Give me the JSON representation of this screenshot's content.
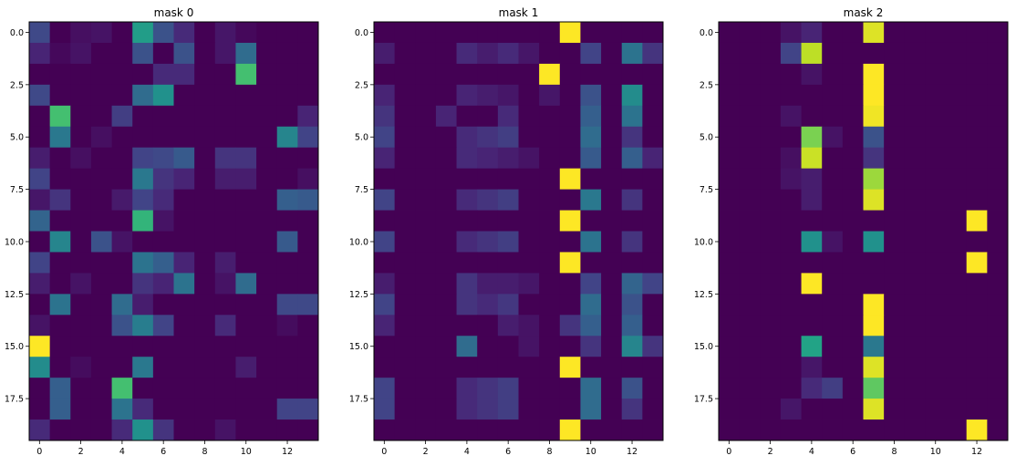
{
  "chart_data": [
    {
      "type": "heatmap",
      "title": "mask 0",
      "xlabel": "",
      "ylabel": "",
      "colormap": "viridis",
      "value_range": [
        0,
        1
      ],
      "xlim": [
        -0.5,
        13.5
      ],
      "ylim": [
        19.5,
        -0.5
      ],
      "x_ticks": [
        "0",
        "2",
        "4",
        "6",
        "8",
        "10",
        "12"
      ],
      "y_ticks": [
        "0.0",
        "2.5",
        "5.0",
        "7.5",
        "10.0",
        "12.5",
        "15.0",
        "17.5"
      ],
      "values": [
        [
          0.22,
          0,
          0.04,
          0.05,
          0,
          0.55,
          0.25,
          0.12,
          0,
          0.06,
          0.02,
          0,
          0,
          0
        ],
        [
          0.1,
          0.02,
          0.05,
          0,
          0,
          0.25,
          0,
          0.25,
          0,
          0.06,
          0.35,
          0,
          0,
          0
        ],
        [
          0,
          0,
          0,
          0,
          0,
          0,
          0.12,
          0.12,
          0,
          0,
          0.7,
          0,
          0,
          0
        ],
        [
          0.22,
          0,
          0,
          0,
          0,
          0.35,
          0.5,
          0,
          0,
          0,
          0,
          0,
          0,
          0
        ],
        [
          0,
          0.7,
          0,
          0,
          0.18,
          0,
          0,
          0,
          0,
          0,
          0,
          0,
          0,
          0.1
        ],
        [
          0,
          0.4,
          0,
          0.04,
          0,
          0,
          0,
          0,
          0,
          0,
          0,
          0,
          0.45,
          0.2
        ],
        [
          0.08,
          0,
          0.04,
          0,
          0,
          0.2,
          0.22,
          0.28,
          0,
          0.15,
          0.15,
          0,
          0,
          0
        ],
        [
          0.2,
          0,
          0,
          0,
          0,
          0.4,
          0.15,
          0.1,
          0,
          0.08,
          0.08,
          0,
          0,
          0.04
        ],
        [
          0.06,
          0.15,
          0,
          0,
          0.07,
          0.2,
          0.12,
          0,
          0,
          0,
          0,
          0,
          0.3,
          0.28
        ],
        [
          0.32,
          0,
          0,
          0,
          0,
          0.65,
          0.05,
          0,
          0,
          0,
          0,
          0,
          0,
          0
        ],
        [
          0,
          0.45,
          0,
          0.25,
          0.05,
          0,
          0,
          0,
          0,
          0,
          0,
          0,
          0.28,
          0
        ],
        [
          0.2,
          0,
          0,
          0,
          0,
          0.38,
          0.3,
          0.1,
          0,
          0.08,
          0,
          0,
          0,
          0
        ],
        [
          0.08,
          0,
          0.05,
          0,
          0,
          0.15,
          0.1,
          0.38,
          0,
          0.05,
          0.35,
          0,
          0,
          0
        ],
        [
          0,
          0.38,
          0,
          0,
          0.35,
          0.08,
          0,
          0,
          0,
          0,
          0,
          0,
          0.22,
          0.22
        ],
        [
          0.05,
          0,
          0,
          0,
          0.25,
          0.42,
          0.2,
          0,
          0,
          0.12,
          0,
          0,
          0.03,
          0
        ],
        [
          1.0,
          0,
          0,
          0,
          0,
          0,
          0,
          0,
          0,
          0,
          0,
          0,
          0,
          0
        ],
        [
          0.48,
          0,
          0.03,
          0,
          0,
          0.4,
          0,
          0,
          0,
          0,
          0.08,
          0,
          0,
          0
        ],
        [
          0,
          0.3,
          0,
          0,
          0.7,
          0,
          0,
          0,
          0,
          0,
          0,
          0,
          0,
          0
        ],
        [
          0,
          0.3,
          0,
          0,
          0.38,
          0.12,
          0,
          0,
          0,
          0,
          0,
          0,
          0.2,
          0.2
        ],
        [
          0.12,
          0,
          0,
          0,
          0.12,
          0.5,
          0.15,
          0,
          0,
          0.05,
          0,
          0,
          0,
          0
        ]
      ]
    },
    {
      "type": "heatmap",
      "title": "mask 1",
      "xlabel": "",
      "ylabel": "",
      "colormap": "viridis",
      "value_range": [
        0,
        1
      ],
      "xlim": [
        -0.5,
        13.5
      ],
      "ylim": [
        19.5,
        -0.5
      ],
      "x_ticks": [
        "0",
        "2",
        "4",
        "6",
        "8",
        "10",
        "12"
      ],
      "y_ticks": [
        "0.0",
        "2.5",
        "5.0",
        "7.5",
        "10.0",
        "12.5",
        "15.0",
        "17.5"
      ],
      "values": [
        [
          0,
          0,
          0,
          0,
          0,
          0,
          0,
          0,
          0,
          1.0,
          0,
          0,
          0,
          0
        ],
        [
          0.08,
          0,
          0,
          0,
          0.12,
          0.08,
          0.12,
          0.06,
          0,
          0,
          0.2,
          0,
          0.38,
          0.15
        ],
        [
          0,
          0,
          0,
          0,
          0,
          0,
          0,
          0,
          1.0,
          0,
          0,
          0,
          0,
          0
        ],
        [
          0.1,
          0,
          0,
          0,
          0.1,
          0.08,
          0.06,
          0,
          0.06,
          0,
          0.25,
          0,
          0.48,
          0
        ],
        [
          0.15,
          0,
          0,
          0.1,
          0,
          0,
          0.12,
          0,
          0,
          0,
          0.3,
          0,
          0.38,
          0
        ],
        [
          0.2,
          0,
          0,
          0,
          0.12,
          0.15,
          0.18,
          0,
          0,
          0,
          0.35,
          0,
          0.15,
          0
        ],
        [
          0.1,
          0,
          0,
          0,
          0.12,
          0.1,
          0.08,
          0.05,
          0,
          0,
          0.28,
          0,
          0.3,
          0.1
        ],
        [
          0,
          0,
          0,
          0,
          0,
          0,
          0,
          0,
          0,
          1.0,
          0,
          0,
          0,
          0
        ],
        [
          0.2,
          0,
          0,
          0,
          0.12,
          0.15,
          0.18,
          0,
          0,
          0,
          0.4,
          0,
          0.15,
          0
        ],
        [
          0,
          0,
          0,
          0,
          0,
          0,
          0,
          0,
          0,
          1.0,
          0,
          0,
          0,
          0
        ],
        [
          0.2,
          0,
          0,
          0,
          0.12,
          0.15,
          0.18,
          0,
          0,
          0,
          0.38,
          0,
          0.15,
          0
        ],
        [
          0,
          0,
          0,
          0,
          0,
          0,
          0,
          0,
          0,
          1.0,
          0,
          0,
          0,
          0
        ],
        [
          0.08,
          0,
          0,
          0,
          0.15,
          0.08,
          0.08,
          0.06,
          0,
          0,
          0.2,
          0,
          0.32,
          0.2
        ],
        [
          0.2,
          0,
          0,
          0,
          0.15,
          0.12,
          0.16,
          0,
          0,
          0,
          0.35,
          0,
          0.25,
          0
        ],
        [
          0.1,
          0,
          0,
          0,
          0,
          0,
          0.08,
          0.05,
          0,
          0.15,
          0.3,
          0,
          0.3,
          0
        ],
        [
          0,
          0,
          0,
          0,
          0.35,
          0,
          0,
          0.05,
          0,
          0,
          0.15,
          0,
          0.45,
          0.15
        ],
        [
          0,
          0,
          0,
          0,
          0,
          0,
          0,
          0,
          0,
          1.0,
          0,
          0,
          0,
          0
        ],
        [
          0.2,
          0,
          0,
          0,
          0.12,
          0.15,
          0.18,
          0,
          0,
          0,
          0.35,
          0,
          0.25,
          0
        ],
        [
          0.2,
          0,
          0,
          0,
          0.12,
          0.15,
          0.18,
          0,
          0,
          0,
          0.35,
          0,
          0.15,
          0
        ],
        [
          0,
          0,
          0,
          0,
          0,
          0,
          0,
          0,
          0,
          1.0,
          0,
          0,
          0,
          0
        ]
      ]
    },
    {
      "type": "heatmap",
      "title": "mask 2",
      "xlabel": "",
      "ylabel": "",
      "colormap": "viridis",
      "value_range": [
        0,
        1
      ],
      "xlim": [
        -0.5,
        13.5
      ],
      "ylim": [
        19.5,
        -0.5
      ],
      "x_ticks": [
        "0",
        "2",
        "4",
        "6",
        "8",
        "10",
        "12"
      ],
      "y_ticks": [
        "0.0",
        "2.5",
        "5.0",
        "7.5",
        "10.0",
        "12.5",
        "15.0",
        "17.5"
      ],
      "values": [
        [
          0,
          0,
          0,
          0.05,
          0.1,
          0,
          0,
          0.95,
          0,
          0,
          0,
          0,
          0,
          0
        ],
        [
          0,
          0,
          0,
          0.2,
          0.9,
          0,
          0,
          0,
          0,
          0,
          0,
          0,
          0,
          0
        ],
        [
          0,
          0,
          0,
          0,
          0.05,
          0,
          0,
          1.0,
          0,
          0,
          0,
          0,
          0,
          0
        ],
        [
          0,
          0,
          0,
          0,
          0,
          0,
          0,
          1.0,
          0,
          0,
          0,
          0,
          0,
          0
        ],
        [
          0,
          0,
          0,
          0.05,
          0,
          0,
          0,
          0.98,
          0,
          0,
          0,
          0,
          0,
          0
        ],
        [
          0,
          0,
          0,
          0,
          0.8,
          0.05,
          0,
          0.25,
          0,
          0,
          0,
          0,
          0,
          0
        ],
        [
          0,
          0,
          0,
          0.04,
          0.92,
          0,
          0,
          0.15,
          0,
          0,
          0,
          0,
          0,
          0
        ],
        [
          0,
          0,
          0,
          0.05,
          0.08,
          0,
          0,
          0.85,
          0,
          0,
          0,
          0,
          0,
          0
        ],
        [
          0,
          0,
          0,
          0,
          0.08,
          0,
          0,
          0.95,
          0,
          0,
          0,
          0,
          0,
          0
        ],
        [
          0,
          0,
          0,
          0,
          0,
          0,
          0,
          0,
          0,
          0,
          0,
          0,
          1.0,
          0
        ],
        [
          0,
          0,
          0,
          0,
          0.5,
          0.05,
          0,
          0.5,
          0,
          0,
          0,
          0,
          0,
          0
        ],
        [
          0,
          0,
          0,
          0,
          0,
          0,
          0,
          0,
          0,
          0,
          0,
          0,
          1.0,
          0
        ],
        [
          0,
          0,
          0,
          0,
          1.0,
          0,
          0,
          0,
          0,
          0,
          0,
          0,
          0,
          0
        ],
        [
          0,
          0,
          0,
          0,
          0,
          0,
          0,
          1.0,
          0,
          0,
          0,
          0,
          0,
          0
        ],
        [
          0,
          0,
          0,
          0,
          0,
          0,
          0,
          1.0,
          0,
          0,
          0,
          0,
          0,
          0
        ],
        [
          0,
          0,
          0,
          0,
          0.58,
          0,
          0,
          0.4,
          0,
          0,
          0,
          0,
          0,
          0
        ],
        [
          0,
          0,
          0,
          0,
          0.06,
          0,
          0,
          0.95,
          0,
          0,
          0,
          0,
          0,
          0
        ],
        [
          0,
          0,
          0,
          0,
          0.12,
          0.18,
          0,
          0.75,
          0,
          0,
          0,
          0,
          0,
          0
        ],
        [
          0,
          0,
          0,
          0.06,
          0,
          0,
          0,
          0.95,
          0,
          0,
          0,
          0,
          0,
          0
        ],
        [
          0,
          0,
          0,
          0,
          0,
          0,
          0,
          0,
          0,
          0,
          0,
          0,
          1.0,
          0
        ]
      ]
    }
  ]
}
